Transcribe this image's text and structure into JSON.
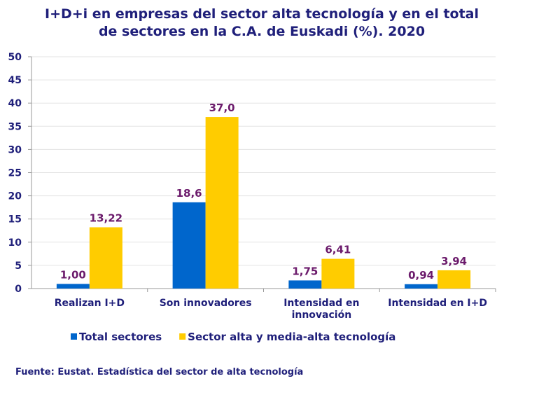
{
  "chart_data": {
    "type": "bar",
    "title_lines": [
      "I+D+i en empresas del sector alta tecnología y en el total",
      "de sectores en la C.A. de Euskadi (%). 2020"
    ],
    "categories": [
      [
        "Realizan I+D"
      ],
      [
        "Son innovadores"
      ],
      [
        "Intensidad en",
        "innovación"
      ],
      [
        "Intensidad en I+D"
      ]
    ],
    "series": [
      {
        "name": "Total sectores",
        "color": "#0066cc",
        "values": [
          1.0,
          18.6,
          1.75,
          0.94
        ],
        "labels": [
          "1,00",
          "18,6",
          "1,75",
          "0,94"
        ]
      },
      {
        "name": "Sector alta y media-alta tecnología",
        "color": "#ffcc00",
        "values": [
          13.22,
          37.0,
          6.41,
          3.94
        ],
        "labels": [
          "13,22",
          "37,0",
          "6,41",
          "3,94"
        ]
      }
    ],
    "ylim": [
      0,
      50
    ],
    "yticks": [
      "0",
      "5",
      "10",
      "15",
      "20",
      "25",
      "30",
      "35",
      "40",
      "45",
      "50"
    ],
    "grid": true,
    "legend_position": "bottom",
    "xlabel": "",
    "ylabel": ""
  },
  "source": "Fuente: Eustat. Estadística del sector de alta tecnología"
}
